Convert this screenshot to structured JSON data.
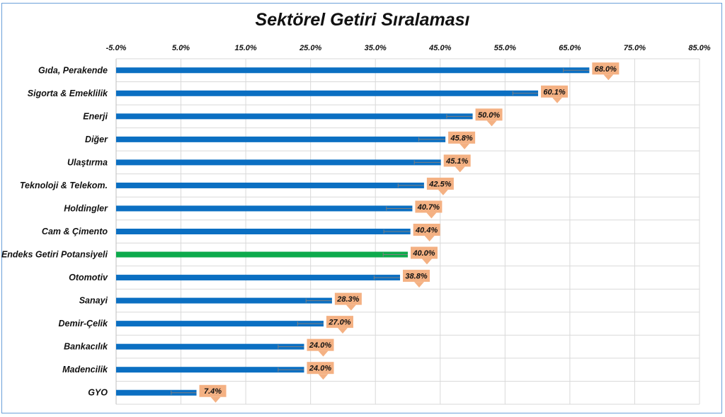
{
  "chart_data": {
    "type": "bar",
    "orientation": "horizontal",
    "title": "Sektörel Getiri Sıralaması",
    "xlim": [
      -5,
      85
    ],
    "x_ticks": [
      "-5.0%",
      "5.0%",
      "15.0%",
      "25.0%",
      "35.0%",
      "45.0%",
      "55.0%",
      "65.0%",
      "75.0%",
      "85.0%"
    ],
    "x_tick_values": [
      -5,
      5,
      15,
      25,
      35,
      45,
      55,
      65,
      75,
      85
    ],
    "x_axis_position": "top",
    "grid": true,
    "categories": [
      "Gıda, Perakende",
      "Sigorta & Emeklilik",
      "Enerji",
      "Diğer",
      "Ulaştırma",
      "Teknoloji & Telekom.",
      "Holdingler",
      "Cam & Çimento",
      "Endeks Getiri Potansiyeli",
      "Otomotiv",
      "Sanayi",
      "Demir-Çelik",
      "Bankacılık",
      "Madencilik",
      "GYO"
    ],
    "values": [
      68.0,
      60.1,
      50.0,
      45.8,
      45.1,
      42.5,
      40.7,
      40.4,
      40.0,
      38.8,
      28.3,
      27.0,
      24.0,
      24.0,
      7.4
    ],
    "value_labels": [
      "68.0%",
      "60.1%",
      "50.0%",
      "45.8%",
      "45.1%",
      "42.5%",
      "40.7%",
      "40.4%",
      "40.0%",
      "38.8%",
      "28.3%",
      "27.0%",
      "24.0%",
      "24.0%",
      "7.4%"
    ],
    "error_low": [
      64.0,
      56.2,
      46.0,
      41.7,
      41.0,
      38.5,
      36.7,
      36.3,
      36.2,
      34.8,
      24.3,
      23.0,
      20.0,
      20.0,
      3.5
    ],
    "highlight_index": 8,
    "colors": {
      "bar": "#0b6fc2",
      "highlight_bar": "#0daa4c",
      "label_bg": "#f4b183",
      "error_bar": "#7f7f7f",
      "grid": "#d9d9d9"
    }
  }
}
